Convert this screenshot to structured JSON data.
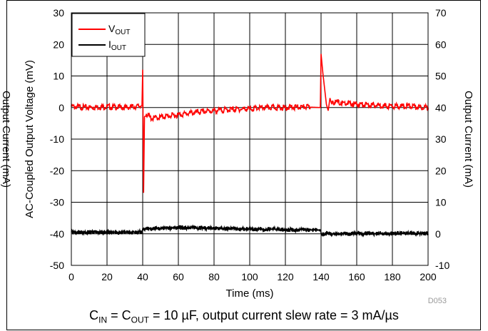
{
  "chart_data": {
    "type": "line",
    "x_label": "Time (ms)",
    "y_left_label": "AC-Coupled Output Voltage (mV)",
    "y_right_label": "Output Current (mA)",
    "xlim": [
      0,
      200
    ],
    "x_ticks": [
      "0",
      "20",
      "40",
      "60",
      "80",
      "100",
      "120",
      "140",
      "160",
      "180",
      "200"
    ],
    "y_left_lim": [
      -50,
      30
    ],
    "y_left_ticks": [
      "30",
      "20",
      "10",
      "0",
      "-10",
      "-20",
      "-30",
      "-40",
      "-50"
    ],
    "y_right_lim": [
      -10,
      70
    ],
    "y_right_ticks": [
      "70",
      "60",
      "50",
      "40",
      "30",
      "20",
      "10",
      "0",
      "-10"
    ],
    "grid": true,
    "legend_position": "top-left",
    "figure_code": "D053",
    "series": [
      {
        "name": "V_OUT",
        "legend_main": "V",
        "legend_sub": "OUT",
        "color": "#ff0000",
        "axis": "left",
        "x": [
          0,
          10,
          20,
          30,
          39.6,
          40,
          40.5,
          41,
          42,
          45,
          50,
          60,
          70,
          80,
          90,
          100,
          110,
          120,
          130,
          139.6,
          140,
          141,
          142,
          143,
          144,
          145,
          146,
          148,
          150,
          160,
          170,
          180,
          190,
          200
        ],
        "y": [
          0.3,
          0,
          0.3,
          0,
          0.5,
          12,
          -27,
          -3,
          -2,
          -3.5,
          -3,
          -2.3,
          -1.5,
          -1,
          -0.6,
          -0.4,
          0,
          0,
          0.2,
          0,
          17,
          11,
          6,
          1,
          -1,
          3,
          1,
          2,
          1.5,
          1,
          0.7,
          0.4,
          0.5,
          0
        ]
      },
      {
        "name": "I_OUT",
        "legend_main": "I",
        "legend_sub": "OUT",
        "color": "#000000",
        "axis": "right",
        "x": [
          0,
          39.8,
          40,
          60,
          100,
          139.8,
          140,
          200
        ],
        "y": [
          0.5,
          0.5,
          1.5,
          2,
          1.5,
          1.2,
          0,
          0.2
        ]
      }
    ]
  },
  "caption": {
    "c1": "C",
    "c1_sub": "IN",
    "eq1": " = C",
    "c2_sub": "OUT",
    "rest": " = 10 µF, output current slew rate = 3 mA/µs"
  }
}
